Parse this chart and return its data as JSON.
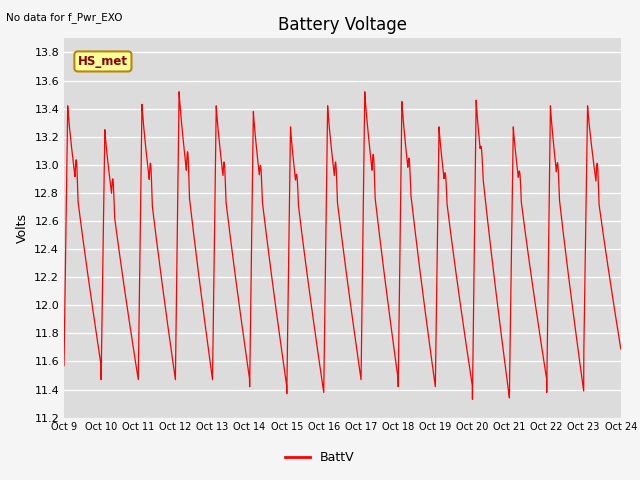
{
  "title": "Battery Voltage",
  "top_left_text": "No data for f_Pwr_EXO",
  "ylabel": "Volts",
  "legend_label": "BattV",
  "line_color": "#ff0000",
  "plot_bg_color": "#dcdcdc",
  "fig_bg_color": "#f5f5f5",
  "ylim": [
    11.2,
    13.9
  ],
  "yticks": [
    11.2,
    11.4,
    11.6,
    11.8,
    12.0,
    12.2,
    12.4,
    12.6,
    12.8,
    13.0,
    13.2,
    13.4,
    13.6,
    13.8
  ],
  "xtick_labels": [
    "Oct 9",
    "Oct 10",
    "Oct 11",
    "Oct 12",
    "Oct 13",
    "Oct 14",
    "Oct 15",
    "Oct 16",
    "Oct 17",
    "Oct 18",
    "Oct 19",
    "Oct 20",
    "Oct 21",
    "Oct 22",
    "Oct 23",
    "Oct 24"
  ],
  "title_fontsize": 12,
  "axis_fontsize": 8,
  "hs_met_box_color": "#ffff99",
  "hs_met_text_color": "#8b0000",
  "hs_met_border_color": "#b8860b"
}
